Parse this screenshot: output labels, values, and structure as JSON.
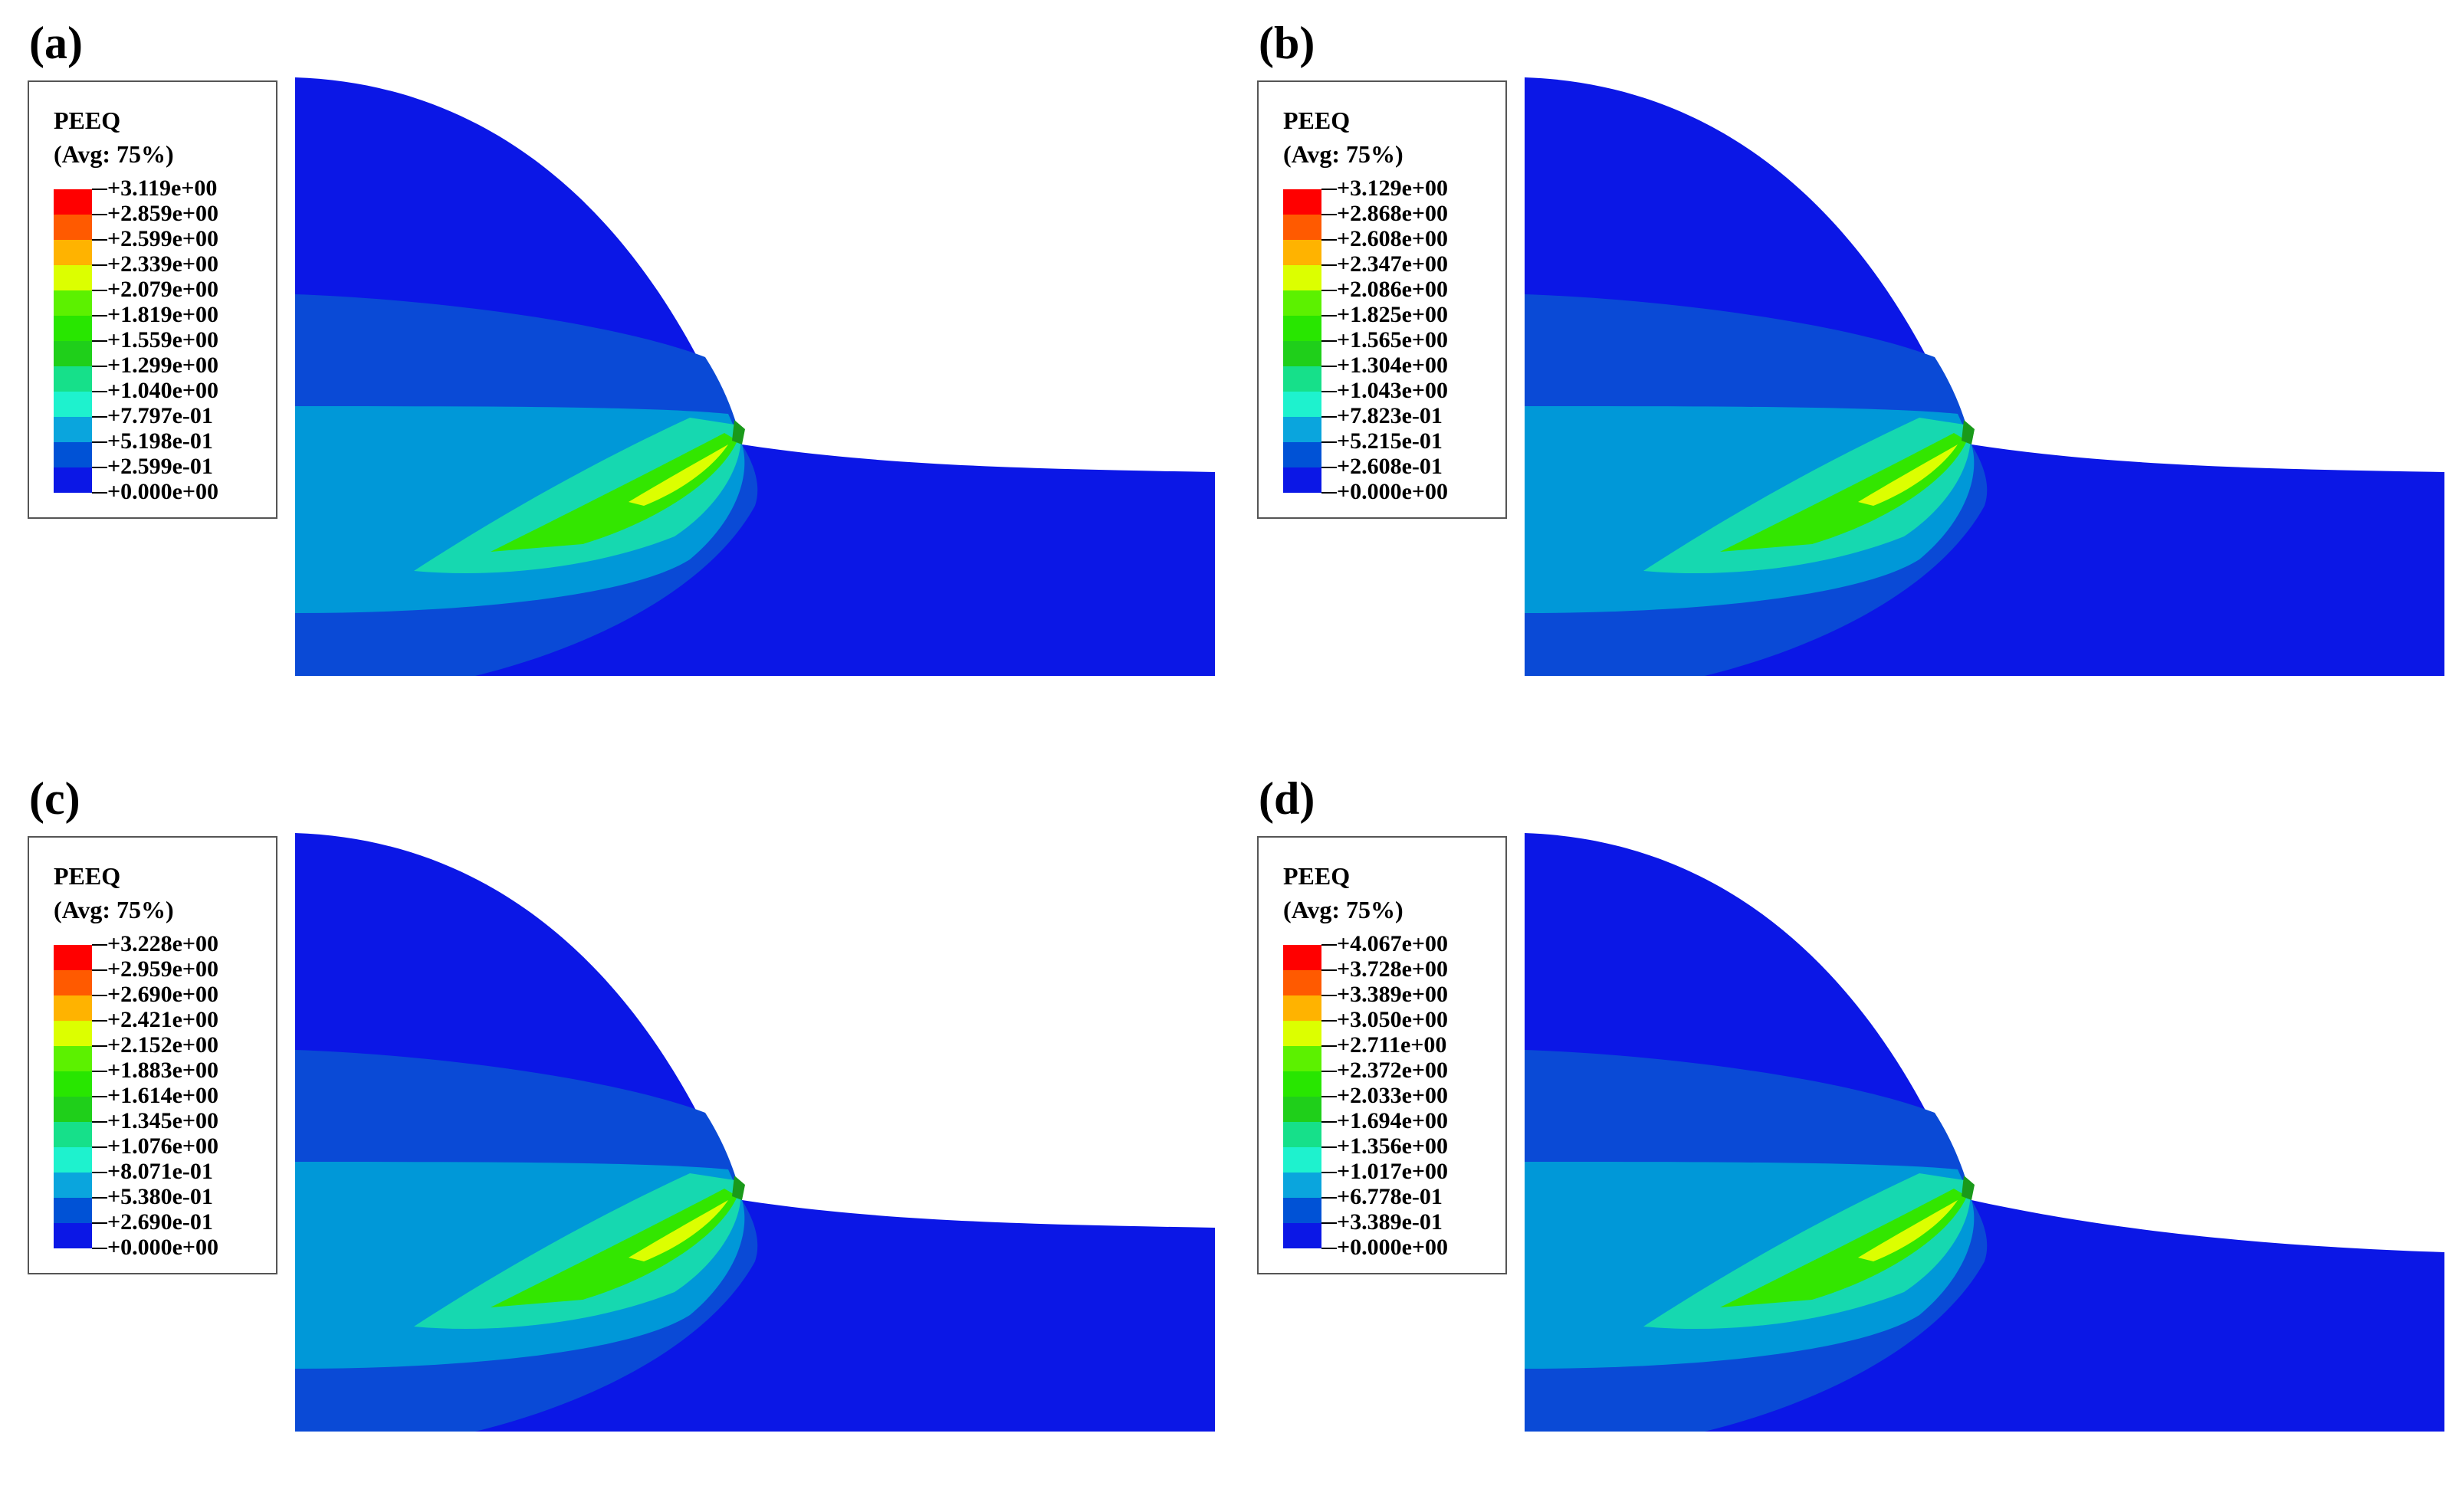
{
  "contour_colors": [
    "#ff0000",
    "#ff5a00",
    "#ffb300",
    "#dcff00",
    "#5cf100",
    "#28e600",
    "#1fcf1a",
    "#16e08a",
    "#1ef2ce",
    "#0aa5dd",
    "#0052d6",
    "#0b17e6"
  ],
  "panels": [
    {
      "label": "(a)",
      "legend_title": "PEEQ",
      "legend_subtitle": "(Avg: 75%)",
      "levels": [
        "+3.119e+00",
        "+2.859e+00",
        "+2.599e+00",
        "+2.339e+00",
        "+2.079e+00",
        "+1.819e+00",
        "+1.559e+00",
        "+1.299e+00",
        "+1.040e+00",
        "+7.797e-01",
        "+5.198e-01",
        "+2.599e-01",
        "+0.000e+00"
      ]
    },
    {
      "label": "(b)",
      "legend_title": "PEEQ",
      "legend_subtitle": "(Avg: 75%)",
      "levels": [
        "+3.129e+00",
        "+2.868e+00",
        "+2.608e+00",
        "+2.347e+00",
        "+2.086e+00",
        "+1.825e+00",
        "+1.565e+00",
        "+1.304e+00",
        "+1.043e+00",
        "+7.823e-01",
        "+5.215e-01",
        "+2.608e-01",
        "+0.000e+00"
      ]
    },
    {
      "label": "(c)",
      "legend_title": "PEEQ",
      "legend_subtitle": "(Avg: 75%)",
      "levels": [
        "+3.228e+00",
        "+2.959e+00",
        "+2.690e+00",
        "+2.421e+00",
        "+2.152e+00",
        "+1.883e+00",
        "+1.614e+00",
        "+1.345e+00",
        "+1.076e+00",
        "+8.071e-01",
        "+5.380e-01",
        "+2.690e-01",
        "+0.000e+00"
      ]
    },
    {
      "label": "(d)",
      "legend_title": "PEEQ",
      "legend_subtitle": "(Avg: 75%)",
      "levels": [
        "+4.067e+00",
        "+3.728e+00",
        "+3.389e+00",
        "+3.050e+00",
        "+2.711e+00",
        "+2.372e+00",
        "+2.033e+00",
        "+1.694e+00",
        "+1.356e+00",
        "+1.017e+00",
        "+6.778e-01",
        "+3.389e-01",
        "+0.000e+00"
      ]
    }
  ]
}
